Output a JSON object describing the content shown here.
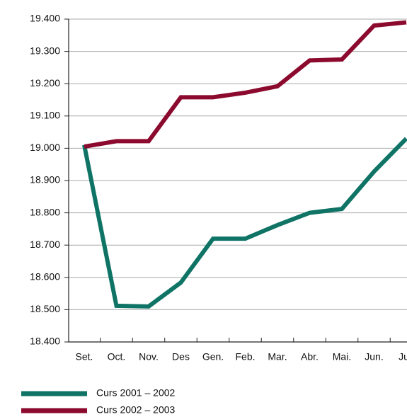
{
  "chart_data": {
    "type": "line",
    "categories": [
      "Set.",
      "Oct.",
      "Nov.",
      "Des",
      "Gen.",
      "Feb.",
      "Mar.",
      "Abr.",
      "Mai.",
      "Jun.",
      "Jul."
    ],
    "series": [
      {
        "name": "Curs 2001 – 2002",
        "color": "#0f7466",
        "values": [
          19010,
          18512,
          18510,
          18584,
          18720,
          18720,
          18762,
          18800,
          18812,
          18928,
          19030
        ]
      },
      {
        "name": "Curs 2002 – 2003",
        "color": "#8b0a2e",
        "values": [
          19005,
          19022,
          19022,
          19158,
          19158,
          19172,
          19192,
          19272,
          19275,
          19380,
          19390
        ]
      }
    ],
    "ylim": [
      18400,
      19400
    ],
    "yticks": [
      {
        "value": 18400,
        "label": "18.400"
      },
      {
        "value": 18500,
        "label": "18.500"
      },
      {
        "value": 18600,
        "label": "18.600"
      },
      {
        "value": 18700,
        "label": "18.700"
      },
      {
        "value": 18800,
        "label": "18.800"
      },
      {
        "value": 18900,
        "label": "18.900"
      },
      {
        "value": 19000,
        "label": "19.000"
      },
      {
        "value": 19100,
        "label": "19.100"
      },
      {
        "value": 19200,
        "label": "19.200"
      },
      {
        "value": 19300,
        "label": "19.300"
      },
      {
        "value": 19400,
        "label": "19.400"
      }
    ],
    "grid": true,
    "legend": "bottom-left"
  }
}
